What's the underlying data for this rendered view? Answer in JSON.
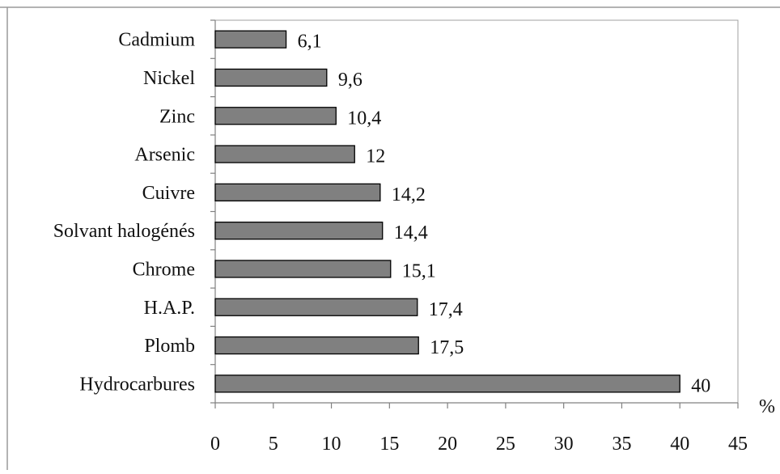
{
  "chart_data": {
    "type": "bar",
    "orientation": "horizontal",
    "categories": [
      "Cadmium",
      "Nickel",
      "Zinc",
      "Arsenic",
      "Cuivre",
      "Solvant halogénés",
      "Chrome",
      "H.A.P.",
      "Plomb",
      "Hydrocarbures"
    ],
    "values": [
      6.1,
      9.6,
      10.4,
      12,
      14.2,
      14.4,
      15.1,
      17.4,
      17.5,
      40
    ],
    "data_labels": [
      "6,1",
      "9,6",
      "10,4",
      "12",
      "14,2",
      "14,4",
      "15,1",
      "17,4",
      "17,5",
      "40"
    ],
    "title": "",
    "xlabel": "%",
    "ylabel": "",
    "xlim": [
      0,
      45
    ],
    "x_ticks": [
      0,
      5,
      10,
      15,
      20,
      25,
      30,
      35,
      40,
      45
    ],
    "grid": false,
    "legend": "none",
    "bar_color": "#808080"
  }
}
